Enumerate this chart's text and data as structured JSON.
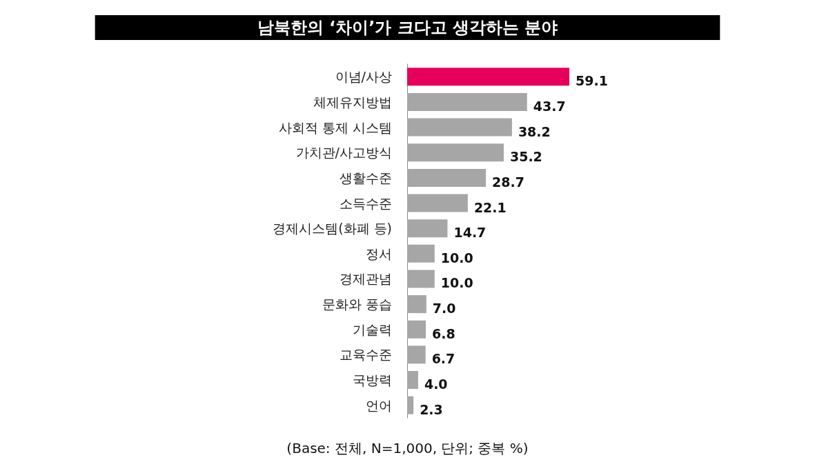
{
  "chart_data": {
    "type": "bar",
    "orientation": "horizontal",
    "title": "남북한의 ‘차이’가 크다고 생각하는 분야",
    "categories": [
      "이념/사상",
      "체제유지방법",
      "사회적 통제 시스템",
      "가치관/사고방식",
      "생활수준",
      "소득수준",
      "경제시스템(화폐 등)",
      "정서",
      "경제관념",
      "문화와 풍습",
      "기술력",
      "교육수준",
      "국방력",
      "언어"
    ],
    "values": [
      59.1,
      43.7,
      38.2,
      35.2,
      28.7,
      22.1,
      14.7,
      10.0,
      10.0,
      7.0,
      6.8,
      6.7,
      4.0,
      2.3
    ],
    "colors": [
      "#e6005c",
      "#a6a6a6",
      "#a6a6a6",
      "#a6a6a6",
      "#a6a6a6",
      "#a6a6a6",
      "#a6a6a6",
      "#a6a6a6",
      "#a6a6a6",
      "#a6a6a6",
      "#a6a6a6",
      "#a6a6a6",
      "#a6a6a6",
      "#a6a6a6"
    ],
    "value_labels": [
      "59.1",
      "43.7",
      "38.2",
      "35.2",
      "28.7",
      "22.1",
      "14.7",
      "10.0",
      "10.0",
      "7.0",
      "6.8",
      "6.7",
      "4.0",
      "2.3"
    ],
    "annotations": [
      "(Base: 전체, N=1,000, 단위; 중복 %)"
    ]
  }
}
